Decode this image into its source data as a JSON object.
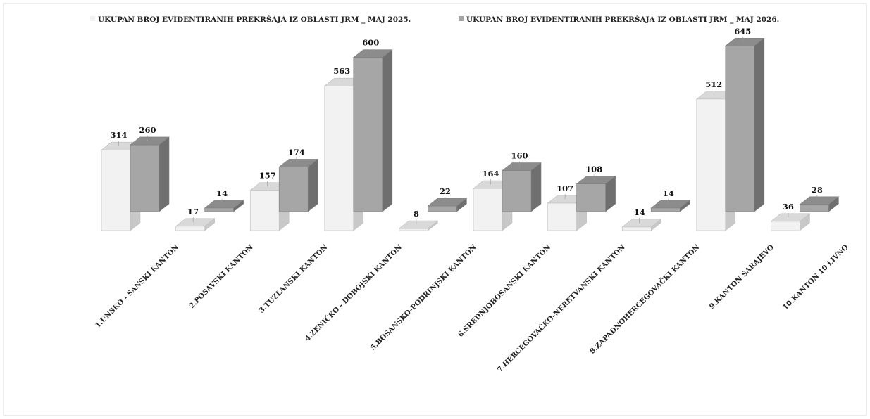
{
  "chart_data": {
    "type": "bar",
    "title": "",
    "xlabel": "",
    "ylabel": "",
    "categories": [
      "1.UNSKO - SANSKI KANTON",
      "2.POSAVSKI KANTON",
      "3.TUZLANSKI KANTON",
      "4.ZENIČKO - DOBOJSKI KANTON",
      "5.BOSANSKO-PODRINJSKI KANTON",
      "6.SREDNJOBOSANSKI KANTON",
      "7.HERCEGOVAČKO-NERETVANSKI KANTON",
      "8.ZAPADNOHERCEGOVAČKI KANTON",
      "9.KANTON SARAJEVO",
      "10.KANTON 10 LIVNO"
    ],
    "series": [
      {
        "name": "UKUPAN  BROJ EVIDENTIRANIH  PREKRŠAJA  IZ OBLASTI  JRM _ MAJ 2025.",
        "values": [
          314,
          17,
          157,
          563,
          8,
          164,
          107,
          14,
          512,
          36
        ],
        "color": "#f2f2f2"
      },
      {
        "name": "UKUPAN  BROJ EVIDENTIRANIH  PREKRŠAJA   IZ OBLASTI  JRM  _ MAJ  2026.",
        "values": [
          260,
          14,
          174,
          600,
          22,
          160,
          108,
          14,
          645,
          28
        ],
        "color": "#a6a6a6"
      }
    ],
    "ylim": [
      0,
      680
    ],
    "grid": false,
    "legend": "top",
    "bar_style": "3d-cylinder-box"
  }
}
